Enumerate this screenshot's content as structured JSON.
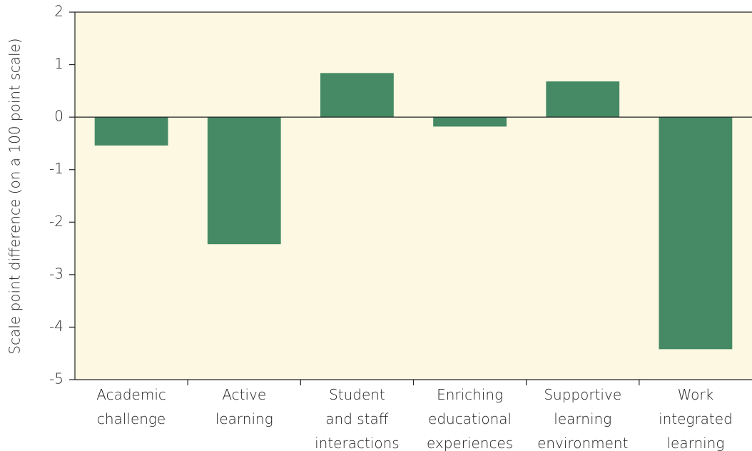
{
  "chart_data": {
    "type": "bar",
    "y_axis_label": "Scale point difference (on a 100 point scale)",
    "categories": [
      "Academic\nchallenge",
      "Active\nlearning",
      "Student\nand staff\ninteractions",
      "Enriching\neducational\nexperiences",
      "Supportive\nlearning\nenvironment",
      "Work\nintegrated\nlearning"
    ],
    "values": [
      -0.54,
      -2.42,
      0.84,
      -0.18,
      0.68,
      -4.42
    ],
    "color": "#458a64",
    "ylim": [
      -5,
      2
    ],
    "yticks": [
      -5,
      -4,
      -3,
      -2,
      -1,
      0,
      1,
      2
    ]
  }
}
